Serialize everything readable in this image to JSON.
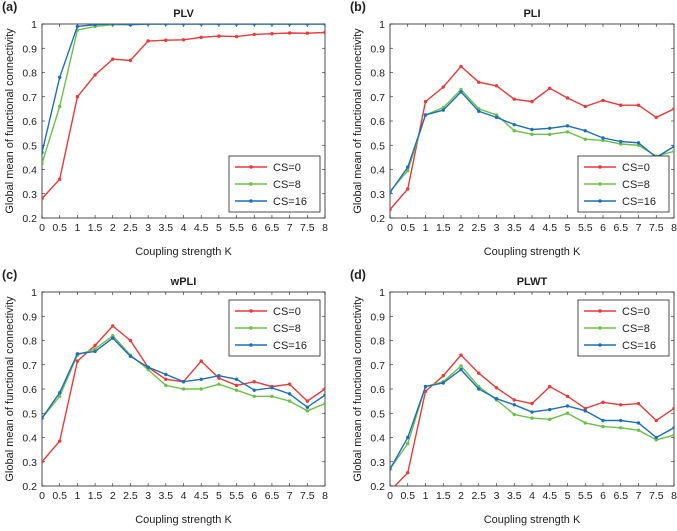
{
  "chart_data": [
    {
      "type": "line",
      "panel_label": "(a)",
      "title": "PLV",
      "xlabel": "Coupling strength K",
      "ylabel": "Global mean of functional connectivity",
      "x": [
        0,
        0.5,
        1,
        1.5,
        2,
        2.5,
        3,
        3.5,
        4,
        4.5,
        5,
        5.5,
        6,
        6.5,
        7,
        7.5,
        8
      ],
      "xlim": [
        0,
        8
      ],
      "ylim": [
        0.2,
        1
      ],
      "xticks": [
        "0",
        "0.5",
        "1",
        "1.5",
        "2",
        "2.5",
        "3",
        "3.5",
        "4",
        "4.5",
        "5",
        "5.5",
        "6",
        "6.5",
        "7",
        "7.5",
        "8"
      ],
      "yticks": [
        "0.2",
        "0.3",
        "0.4",
        "0.5",
        "0.6",
        "0.7",
        "0.8",
        "0.9",
        "1"
      ],
      "legend_position": "bottom-right",
      "series": [
        {
          "name": "CS=0",
          "color": "#e8393b",
          "values": [
            0.28,
            0.36,
            0.7,
            0.79,
            0.855,
            0.85,
            0.93,
            0.933,
            0.935,
            0.945,
            0.95,
            0.948,
            0.957,
            0.96,
            0.963,
            0.962,
            0.965
          ]
        },
        {
          "name": "CS=8",
          "color": "#6cc04a",
          "values": [
            0.425,
            0.66,
            0.975,
            0.99,
            0.997,
            0.997,
            1,
            1,
            1,
            1,
            1,
            1,
            1,
            1,
            1,
            1,
            1
          ]
        },
        {
          "name": "CS=16",
          "color": "#1f6fb8",
          "values": [
            0.47,
            0.78,
            0.99,
            0.997,
            1,
            0.997,
            1,
            1,
            1,
            1,
            1,
            1,
            1,
            1,
            1,
            1,
            1
          ]
        }
      ]
    },
    {
      "type": "line",
      "panel_label": "(b)",
      "title": "PLI",
      "xlabel": "Coupling strength K",
      "ylabel": "Global mean of functional connectivity",
      "x": [
        0,
        0.5,
        1,
        1.5,
        2,
        2.5,
        3,
        3.5,
        4,
        4.5,
        5,
        5.5,
        6,
        6.5,
        7,
        7.5,
        8
      ],
      "xlim": [
        0,
        8
      ],
      "ylim": [
        0.2,
        1
      ],
      "xticks": [
        "0",
        "0.5",
        "1",
        "1.5",
        "2",
        "2.5",
        "3",
        "3.5",
        "4",
        "4.5",
        "5",
        "5.5",
        "6",
        "6.5",
        "7",
        "7.5",
        "8"
      ],
      "yticks": [
        "0.2",
        "0.3",
        "0.4",
        "0.5",
        "0.6",
        "0.7",
        "0.8",
        "0.9",
        "1"
      ],
      "legend_position": "bottom-right",
      "series": [
        {
          "name": "CS=0",
          "color": "#e8393b",
          "values": [
            0.235,
            0.32,
            0.68,
            0.74,
            0.825,
            0.76,
            0.745,
            0.69,
            0.68,
            0.735,
            0.695,
            0.66,
            0.685,
            0.665,
            0.665,
            0.615,
            0.65
          ]
        },
        {
          "name": "CS=8",
          "color": "#6cc04a",
          "values": [
            0.31,
            0.395,
            0.625,
            0.655,
            0.73,
            0.65,
            0.625,
            0.56,
            0.545,
            0.545,
            0.555,
            0.525,
            0.52,
            0.505,
            0.5,
            0.455,
            0.475
          ]
        },
        {
          "name": "CS=16",
          "color": "#1f6fb8",
          "values": [
            0.305,
            0.41,
            0.625,
            0.645,
            0.72,
            0.64,
            0.615,
            0.585,
            0.565,
            0.57,
            0.58,
            0.56,
            0.53,
            0.515,
            0.51,
            0.45,
            0.495
          ]
        }
      ]
    },
    {
      "type": "line",
      "panel_label": "(c)",
      "title": "wPLI",
      "xlabel": "Coupling strength K",
      "ylabel": "Global mean of functional connectivity",
      "x": [
        0,
        0.5,
        1,
        1.5,
        2,
        2.5,
        3,
        3.5,
        4,
        4.5,
        5,
        5.5,
        6,
        6.5,
        7,
        7.5,
        8
      ],
      "xlim": [
        0,
        8
      ],
      "ylim": [
        0.2,
        1
      ],
      "xticks": [
        "0",
        "0.5",
        "1",
        "1.5",
        "2",
        "2.5",
        "3",
        "3.5",
        "4",
        "4.5",
        "5",
        "5.5",
        "6",
        "6.5",
        "7",
        "7.5",
        "8"
      ],
      "yticks": [
        "0.2",
        "0.3",
        "0.4",
        "0.5",
        "0.6",
        "0.7",
        "0.8",
        "0.9",
        "1"
      ],
      "legend_position": "top-right",
      "series": [
        {
          "name": "CS=0",
          "color": "#e8393b",
          "values": [
            0.3,
            0.385,
            0.715,
            0.78,
            0.86,
            0.8,
            0.69,
            0.64,
            0.63,
            0.715,
            0.645,
            0.615,
            0.63,
            0.61,
            0.62,
            0.55,
            0.6
          ]
        },
        {
          "name": "CS=8",
          "color": "#6cc04a",
          "values": [
            0.48,
            0.57,
            0.74,
            0.765,
            0.82,
            0.74,
            0.68,
            0.615,
            0.6,
            0.6,
            0.62,
            0.595,
            0.57,
            0.57,
            0.55,
            0.51,
            0.54
          ]
        },
        {
          "name": "CS=16",
          "color": "#1f6fb8",
          "values": [
            0.48,
            0.585,
            0.745,
            0.755,
            0.81,
            0.735,
            0.69,
            0.66,
            0.63,
            0.64,
            0.655,
            0.64,
            0.595,
            0.605,
            0.58,
            0.525,
            0.575
          ]
        }
      ]
    },
    {
      "type": "line",
      "panel_label": "(d)",
      "title": "PLWT",
      "xlabel": "Coupling strength K",
      "ylabel": "Global mean of functional connectivity",
      "x": [
        0,
        0.5,
        1,
        1.5,
        2,
        2.5,
        3,
        3.5,
        4,
        4.5,
        5,
        5.5,
        6,
        6.5,
        7,
        7.5,
        8
      ],
      "xlim": [
        0,
        8
      ],
      "ylim": [
        0.2,
        1
      ],
      "xticks": [
        "0",
        "0.5",
        "1",
        "1.5",
        "2",
        "2.5",
        "3",
        "3.5",
        "4",
        "4.5",
        "5",
        "5.5",
        "6",
        "6.5",
        "7",
        "7.5",
        "8"
      ],
      "yticks": [
        "0.2",
        "0.3",
        "0.4",
        "0.5",
        "0.6",
        "0.7",
        "0.8",
        "0.9",
        "1"
      ],
      "legend_position": "top-right",
      "series": [
        {
          "name": "CS=0",
          "color": "#e8393b",
          "values": [
            0.18,
            0.255,
            0.59,
            0.655,
            0.74,
            0.665,
            0.605,
            0.555,
            0.54,
            0.61,
            0.57,
            0.52,
            0.545,
            0.535,
            0.54,
            0.47,
            0.52
          ]
        },
        {
          "name": "CS=8",
          "color": "#6cc04a",
          "values": [
            0.27,
            0.375,
            0.61,
            0.63,
            0.695,
            0.61,
            0.555,
            0.495,
            0.48,
            0.475,
            0.5,
            0.46,
            0.445,
            0.44,
            0.43,
            0.39,
            0.41
          ]
        },
        {
          "name": "CS=16",
          "color": "#1f6fb8",
          "values": [
            0.27,
            0.4,
            0.61,
            0.625,
            0.68,
            0.6,
            0.56,
            0.535,
            0.505,
            0.515,
            0.53,
            0.51,
            0.47,
            0.47,
            0.46,
            0.4,
            0.44
          ]
        }
      ]
    }
  ]
}
